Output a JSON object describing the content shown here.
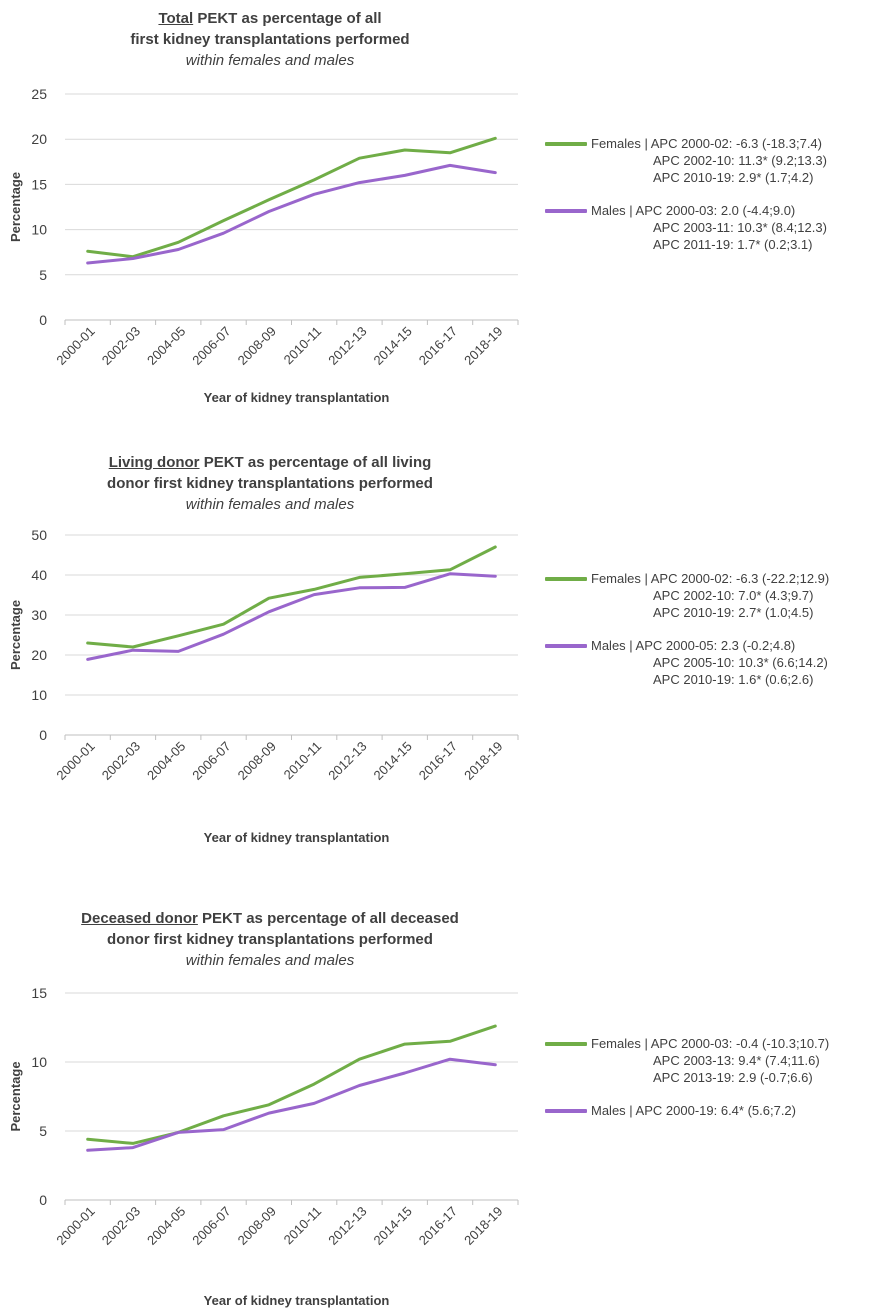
{
  "colors": {
    "females": "#70AD47",
    "males": "#9966CC",
    "grid": "#d9d9d9",
    "text": "#404040"
  },
  "chart_data": [
    {
      "type": "line",
      "title_underlined": "Total",
      "title_rest": "PEKT as percentage of all",
      "title_line2": "first kidney transplantations performed",
      "subtitle": "within females and males",
      "xlabel": "Year of kidney transplantation",
      "ylabel": "Percentage",
      "ylim": [
        0,
        25
      ],
      "yticks": [
        0,
        5,
        10,
        15,
        20,
        25
      ],
      "categories": [
        "2000-01",
        "2002-03",
        "2004-05",
        "2006-07",
        "2008-09",
        "2010-11",
        "2012-13",
        "2014-15",
        "2016-17",
        "2018-19"
      ],
      "series": [
        {
          "name": "Females",
          "values": [
            7.6,
            7.0,
            8.6,
            11.0,
            13.3,
            15.5,
            17.9,
            18.8,
            18.5,
            20.1
          ],
          "legend": [
            "Females | APC 2000-02: -6.3 (-18.3;7.4)",
            "APC 2002-10: 11.3* (9.2;13.3)",
            "APC 2010-19: 2.9* (1.7;4.2)"
          ]
        },
        {
          "name": "Males",
          "values": [
            6.3,
            6.8,
            7.8,
            9.6,
            12.0,
            13.9,
            15.2,
            16.0,
            17.1,
            16.3
          ],
          "legend": [
            "Males | APC 2000-03: 2.0 (-4.4;9.0)",
            "APC 2003-11: 10.3* (8.4;12.3)",
            "APC 2011-19: 1.7* (0.2;3.1)"
          ]
        }
      ],
      "grid": true,
      "legend_position": "right"
    },
    {
      "type": "line",
      "title_underlined": "Living donor",
      "title_rest": "PEKT as percentage of all living",
      "title_line2": "donor first kidney transplantations performed",
      "subtitle": "within females and males",
      "xlabel": "Year of kidney transplantation",
      "ylabel": "Percentage",
      "ylim": [
        0,
        50
      ],
      "yticks": [
        0,
        10,
        20,
        30,
        40,
        50
      ],
      "categories": [
        "2000-01",
        "2002-03",
        "2004-05",
        "2006-07",
        "2008-09",
        "2010-11",
        "2012-13",
        "2014-15",
        "2016-17",
        "2018-19"
      ],
      "series": [
        {
          "name": "Females",
          "values": [
            23.0,
            22.0,
            24.8,
            27.7,
            34.2,
            36.4,
            39.4,
            40.3,
            41.3,
            47.0
          ],
          "legend": [
            "Females | APC 2000-02: -6.3 (-22.2;12.9)",
            "APC 2002-10: 7.0* (4.3;9.7)",
            "APC 2010-19: 2.7* (1.0;4.5)"
          ]
        },
        {
          "name": "Males",
          "values": [
            18.9,
            21.2,
            20.9,
            25.2,
            30.8,
            35.1,
            36.8,
            36.9,
            40.3,
            39.7
          ],
          "legend": [
            "Males | APC 2000-05: 2.3 (-0.2;4.8)",
            "APC 2005-10: 10.3* (6.6;14.2)",
            "APC 2010-19: 1.6* (0.6;2.6)"
          ]
        }
      ],
      "grid": true,
      "legend_position": "right"
    },
    {
      "type": "line",
      "title_underlined": "Deceased donor",
      "title_rest": "PEKT as percentage of all deceased",
      "title_line2": "donor first kidney transplantations performed",
      "subtitle": "within females and males",
      "xlabel": "Year of kidney transplantation",
      "ylabel": "Percentage",
      "ylim": [
        0,
        15
      ],
      "yticks": [
        0,
        5,
        10,
        15
      ],
      "categories": [
        "2000-01",
        "2002-03",
        "2004-05",
        "2006-07",
        "2008-09",
        "2010-11",
        "2012-13",
        "2014-15",
        "2016-17",
        "2018-19"
      ],
      "series": [
        {
          "name": "Females",
          "values": [
            4.4,
            4.1,
            4.9,
            6.1,
            6.9,
            8.4,
            10.2,
            11.3,
            11.5,
            12.6
          ],
          "legend": [
            "Females | APC 2000-03: -0.4 (-10.3;10.7)",
            "APC 2003-13: 9.4* (7.4;11.6)",
            "APC 2013-19: 2.9 (-0.7;6.6)"
          ]
        },
        {
          "name": "Males",
          "values": [
            3.6,
            3.8,
            4.9,
            5.1,
            6.3,
            7.0,
            8.3,
            9.2,
            10.2,
            9.8
          ],
          "legend": [
            "Males | APC 2000-19: 6.4* (5.6;7.2)"
          ]
        }
      ],
      "grid": true,
      "legend_position": "right"
    }
  ]
}
